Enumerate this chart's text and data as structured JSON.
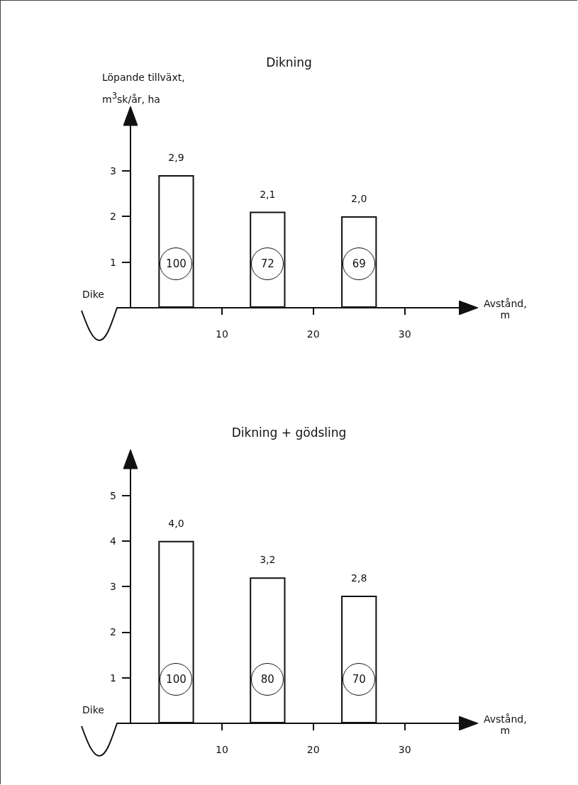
{
  "chart_data": [
    {
      "type": "bar",
      "title": "Dikning",
      "ylabel": "Löpande tillväxt, m$^{3}$sk/år, ha",
      "xlabel": "Avstånd, m",
      "x": [
        5,
        15,
        25
      ],
      "values": [
        2.9,
        2.1,
        2.0
      ],
      "value_labels": [
        "2,9",
        "2,1",
        "2,0"
      ],
      "color": "#ffffff",
      "xlim": [
        0,
        36
      ],
      "xticks": [
        10,
        20,
        30
      ],
      "ylim": [
        0,
        4
      ],
      "yticks": [
        1,
        2,
        3
      ],
      "grid": false,
      "annotations": [
        "Dike",
        "100",
        "72",
        "69"
      ]
    },
    {
      "type": "bar",
      "title": "Dikning + gödsling",
      "xlabel": "Avstånd, m",
      "x": [
        5,
        15,
        25
      ],
      "values": [
        4.0,
        3.2,
        2.8
      ],
      "value_labels": [
        "4,0",
        "3,2",
        "2,8"
      ],
      "color": "#ffffff",
      "xlim": [
        0,
        36
      ],
      "xticks": [
        10,
        20,
        30
      ],
      "ylim": [
        0,
        5.6
      ],
      "yticks": [
        1,
        2,
        3,
        4,
        5
      ],
      "grid": false,
      "annotations": [
        "Dike",
        "100",
        "80",
        "70"
      ]
    }
  ]
}
